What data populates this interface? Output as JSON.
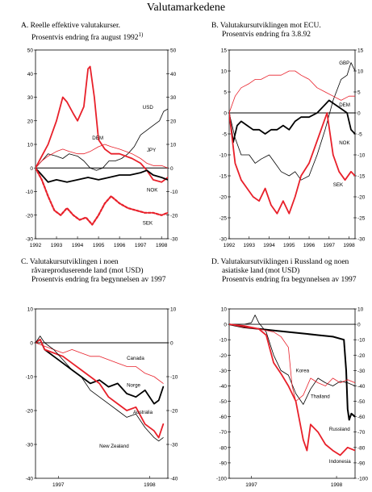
{
  "page_title": "Valutamarkedene",
  "colors": {
    "red": "#e8202a",
    "black": "#000000"
  },
  "chart_data": [
    {
      "id": "A",
      "type": "line",
      "title_lines": [
        "A.  Reelle effektive valutakurser.",
        "Prosentvis endring fra august 1992"
      ],
      "title_sup": "1)",
      "ylim": [
        -30,
        50
      ],
      "yticks": [
        -30,
        -20,
        -10,
        0,
        10,
        20,
        30,
        40,
        50
      ],
      "xlim": [
        1992.0,
        1998.3
      ],
      "xticks": [
        "1992",
        "1993",
        "1994",
        "1995",
        "1996",
        "1997",
        "1998"
      ],
      "xtick_pos": [
        1992.0,
        1993.0,
        1994.0,
        1995.0,
        1996.0,
        1997.0,
        1998.0
      ],
      "series": [
        {
          "name": "USD",
          "color": "#000000",
          "width": 0.8,
          "dash": "",
          "x": [
            1992.0,
            1992.3,
            1992.6,
            1993.0,
            1993.3,
            1993.6,
            1994.0,
            1994.3,
            1994.6,
            1994.9,
            1995.2,
            1995.5,
            1995.8,
            1996.1,
            1996.4,
            1996.7,
            1997.0,
            1997.3,
            1997.6,
            1997.9,
            1998.1,
            1998.3
          ],
          "y": [
            0,
            3,
            6,
            5,
            4,
            6,
            5,
            3,
            0,
            -1,
            0,
            3,
            3,
            4,
            6,
            9,
            14,
            16,
            18,
            20,
            24,
            25
          ]
        },
        {
          "name": "DEM",
          "color": "#e8202a",
          "width": 0.8,
          "dash": "",
          "x": [
            1992.0,
            1992.3,
            1992.6,
            1993.0,
            1993.3,
            1993.6,
            1994.0,
            1994.3,
            1994.6,
            1995.0,
            1995.3,
            1995.6,
            1996.0,
            1996.3,
            1996.6,
            1997.0,
            1997.3,
            1997.6,
            1998.0,
            1998.3
          ],
          "y": [
            0,
            3,
            5,
            7,
            8,
            7,
            6,
            6,
            7,
            9,
            10,
            9,
            8,
            7,
            6,
            4,
            2,
            1,
            1,
            0
          ]
        },
        {
          "name": "JPY",
          "color": "#e8202a",
          "width": 1.8,
          "dash": "",
          "x": [
            1992.0,
            1992.3,
            1992.6,
            1993.0,
            1993.3,
            1993.5,
            1993.8,
            1994.0,
            1994.3,
            1994.5,
            1994.6,
            1994.8,
            1995.0,
            1995.3,
            1995.6,
            1996.0,
            1996.3,
            1996.6,
            1997.0,
            1997.3,
            1997.6,
            1998.0,
            1998.3
          ],
          "y": [
            0,
            5,
            10,
            20,
            30,
            28,
            23,
            20,
            26,
            42,
            43,
            30,
            12,
            8,
            6,
            6,
            5,
            4,
            2,
            -1,
            -5,
            -6,
            -4
          ]
        },
        {
          "name": "NOK",
          "color": "#000000",
          "width": 1.8,
          "dash": "",
          "x": [
            1992.0,
            1992.3,
            1992.6,
            1993.0,
            1993.5,
            1994.0,
            1994.5,
            1995.0,
            1995.5,
            1996.0,
            1996.5,
            1997.0,
            1997.3,
            1997.6,
            1998.0,
            1998.3
          ],
          "y": [
            0,
            -3,
            -6,
            -5,
            -6,
            -5,
            -4,
            -5,
            -4,
            -3,
            -3,
            -2,
            -1,
            -3,
            -4,
            -5
          ]
        },
        {
          "name": "SEK",
          "color": "#e8202a",
          "width": 2.2,
          "dash": "3,2",
          "x": [
            1992.0,
            1992.3,
            1992.6,
            1992.9,
            1993.2,
            1993.5,
            1993.8,
            1994.1,
            1994.4,
            1994.7,
            1995.0,
            1995.3,
            1995.6,
            1996.0,
            1996.4,
            1996.8,
            1997.2,
            1997.6,
            1998.0,
            1998.3
          ],
          "y": [
            0,
            -5,
            -12,
            -18,
            -20,
            -17,
            -20,
            -22,
            -21,
            -24,
            -20,
            -15,
            -12,
            -15,
            -17,
            -18,
            -19,
            -19,
            -20,
            -19
          ]
        }
      ],
      "labels": [
        {
          "text": "USD",
          "x": 1997.1,
          "y": 25
        },
        {
          "text": "DEM",
          "x": 1994.7,
          "y": 12
        },
        {
          "text": "JPY",
          "x": 1997.3,
          "y": 7
        },
        {
          "text": "NOK",
          "x": 1997.3,
          "y": -10
        },
        {
          "text": "SEK",
          "x": 1997.1,
          "y": -24
        }
      ]
    },
    {
      "id": "B",
      "type": "line",
      "title_lines": [
        "B.  Valutakursutviklingen mot ECU.",
        "Prosentvis endring fra 3.8.92"
      ],
      "ylim": [
        -30,
        15
      ],
      "yticks": [
        -30,
        -25,
        -20,
        -15,
        -10,
        -5,
        0,
        5,
        10,
        15
      ],
      "xlim": [
        1992.0,
        1998.3
      ],
      "xticks": [
        "1992",
        "1993",
        "1994",
        "1995",
        "1996",
        "1997",
        "1998"
      ],
      "xtick_pos": [
        1992.0,
        1993.0,
        1994.0,
        1995.0,
        1996.0,
        1997.0,
        1998.0
      ],
      "series": [
        {
          "name": "GBP",
          "color": "#000000",
          "width": 0.8,
          "dash": "",
          "x": [
            1992.0,
            1992.3,
            1992.6,
            1993.0,
            1993.3,
            1993.6,
            1994.0,
            1994.3,
            1994.6,
            1995.0,
            1995.3,
            1995.6,
            1996.0,
            1996.4,
            1996.8,
            1997.2,
            1997.6,
            1997.9,
            1998.1,
            1998.3
          ],
          "y": [
            0,
            -6,
            -10,
            -10,
            -12,
            -11,
            -10,
            -12,
            -14,
            -15,
            -14,
            -16,
            -15,
            -10,
            -4,
            3,
            8,
            9,
            12,
            10
          ]
        },
        {
          "name": "DEM",
          "color": "#e8202a",
          "width": 0.8,
          "dash": "",
          "x": [
            1992.0,
            1992.3,
            1992.6,
            1993.0,
            1993.3,
            1993.6,
            1994.0,
            1994.3,
            1994.6,
            1995.0,
            1995.3,
            1995.6,
            1996.0,
            1996.4,
            1996.8,
            1997.2,
            1997.6,
            1998.0,
            1998.3
          ],
          "y": [
            0,
            4,
            6,
            7,
            8,
            8,
            9,
            9,
            9,
            10,
            10,
            9,
            8,
            6,
            5,
            4,
            3,
            4,
            4
          ]
        },
        {
          "name": "NOK",
          "color": "#000000",
          "width": 1.8,
          "dash": "",
          "x": [
            1992.0,
            1992.2,
            1992.4,
            1992.6,
            1992.9,
            1993.2,
            1993.5,
            1993.8,
            1994.1,
            1994.4,
            1994.7,
            1995.0,
            1995.3,
            1995.6,
            1996.0,
            1996.4,
            1996.8,
            1997.0,
            1997.3,
            1997.6,
            1997.9,
            1998.1,
            1998.3
          ],
          "y": [
            0,
            -7,
            -3,
            -2,
            -3,
            -4,
            -4,
            -5,
            -4,
            -4,
            -3,
            -4,
            -2,
            -1,
            -1,
            0,
            2,
            3,
            2,
            1,
            0,
            -4,
            -5
          ]
        },
        {
          "name": "SEK",
          "color": "#e8202a",
          "width": 1.8,
          "dash": "",
          "x": [
            1992.0,
            1992.3,
            1992.6,
            1992.9,
            1993.2,
            1993.5,
            1993.8,
            1994.1,
            1994.4,
            1994.7,
            1995.0,
            1995.3,
            1995.6,
            1996.0,
            1996.3,
            1996.6,
            1996.9,
            1997.2,
            1997.5,
            1997.8,
            1998.1,
            1998.3
          ],
          "y": [
            0,
            -12,
            -16,
            -18,
            -20,
            -21,
            -18,
            -22,
            -24,
            -21,
            -24,
            -20,
            -15,
            -12,
            -8,
            -4,
            0,
            -10,
            -14,
            -16,
            -14,
            -15
          ]
        }
      ],
      "labels": [
        {
          "text": "GBP",
          "x": 1997.5,
          "y": 11.5
        },
        {
          "text": "DEM",
          "x": 1997.5,
          "y": 1.5
        },
        {
          "text": "NOK",
          "x": 1997.5,
          "y": -7.5
        },
        {
          "text": "SEK",
          "x": 1997.2,
          "y": -17.5
        }
      ]
    },
    {
      "id": "C",
      "type": "line",
      "title_lines": [
        "C.  Valutakursutviklingen i noen",
        "råvareproduserende land (mot USD)",
        "Prosentvis endring fra begynnelsen av 1997"
      ],
      "ylim": [
        -40,
        10
      ],
      "yticks": [
        -40,
        -30,
        -20,
        -10,
        0,
        10
      ],
      "xlim": [
        1997.0,
        1998.45
      ],
      "xticks": [
        "1997",
        "1998"
      ],
      "xtick_pos": [
        1997.25,
        1998.25
      ],
      "series": [
        {
          "name": "Canada",
          "color": "#e8202a",
          "width": 0.8,
          "dash": "",
          "x": [
            1997.0,
            1997.1,
            1997.2,
            1997.3,
            1997.4,
            1997.5,
            1997.6,
            1997.7,
            1997.8,
            1997.9,
            1998.0,
            1998.1,
            1998.2,
            1998.3,
            1998.4
          ],
          "y": [
            0,
            -1,
            -2,
            -3,
            -2,
            -3,
            -4,
            -4,
            -5,
            -6,
            -7,
            -7,
            -9,
            -10,
            -12
          ]
        },
        {
          "name": "Norge",
          "color": "#000000",
          "width": 1.8,
          "dash": "",
          "x": [
            1997.0,
            1997.05,
            1997.1,
            1997.2,
            1997.3,
            1997.4,
            1997.5,
            1997.6,
            1997.7,
            1997.8,
            1997.9,
            1998.0,
            1998.1,
            1998.2,
            1998.3,
            1998.35,
            1998.4
          ],
          "y": [
            0,
            1,
            -2,
            -4,
            -6,
            -8,
            -10,
            -12,
            -11,
            -13,
            -12,
            -15,
            -16,
            -14,
            -18,
            -17,
            -13
          ]
        },
        {
          "name": "Australia",
          "color": "#e8202a",
          "width": 1.8,
          "dash": "",
          "x": [
            1997.0,
            1997.05,
            1997.1,
            1997.2,
            1997.3,
            1997.4,
            1997.5,
            1997.6,
            1997.7,
            1997.8,
            1997.9,
            1998.0,
            1998.1,
            1998.2,
            1998.3,
            1998.35,
            1998.4
          ],
          "y": [
            0,
            1,
            -2,
            -3,
            -4,
            -6,
            -8,
            -10,
            -12,
            -16,
            -18,
            -20,
            -19,
            -24,
            -26,
            -28,
            -24
          ]
        },
        {
          "name": "New Zealand",
          "color": "#000000",
          "width": 0.8,
          "dash": "",
          "x": [
            1997.0,
            1997.05,
            1997.1,
            1997.2,
            1997.3,
            1997.4,
            1997.5,
            1997.6,
            1997.7,
            1997.8,
            1997.9,
            1998.0,
            1998.1,
            1998.2,
            1998.3,
            1998.35,
            1998.4
          ],
          "y": [
            0,
            2,
            0,
            -2,
            -5,
            -8,
            -10,
            -14,
            -16,
            -18,
            -20,
            -22,
            -21,
            -25,
            -28,
            -29,
            -28
          ]
        }
      ],
      "labels": [
        {
          "text": "Canada",
          "x": 1998.0,
          "y": -5
        },
        {
          "text": "Norge",
          "x": 1998.0,
          "y": -13
        },
        {
          "text": "Australia",
          "x": 1998.07,
          "y": -21
        },
        {
          "text": "New Zealand",
          "x": 1997.7,
          "y": -31
        }
      ]
    },
    {
      "id": "D",
      "type": "line",
      "title_lines": [
        "D.  Valutakursutviklingen i Russland og noen",
        "asiatiske land (mot USD)",
        "Prosentvis endring fra begynnelsen av 1997"
      ],
      "ylim": [
        -100,
        10
      ],
      "yticks": [
        -100,
        -90,
        -80,
        -70,
        -60,
        -50,
        -40,
        -30,
        -20,
        -10,
        0,
        10
      ],
      "xlim": [
        1997.0,
        1998.7
      ],
      "xticks": [
        "1997",
        "1998"
      ],
      "xtick_pos": [
        1997.3,
        1998.45
      ],
      "series": [
        {
          "name": "Russland",
          "color": "#000000",
          "width": 2.0,
          "dash": "",
          "x": [
            1997.0,
            1997.2,
            1997.4,
            1997.6,
            1997.8,
            1998.0,
            1998.2,
            1998.4,
            1998.55,
            1998.58,
            1998.6,
            1998.62,
            1998.65,
            1998.7
          ],
          "y": [
            0,
            -2,
            -3,
            -4,
            -5,
            -6,
            -7,
            -8,
            -10,
            -30,
            -55,
            -62,
            -58,
            -60
          ]
        },
        {
          "name": "Thailand",
          "color": "#000000",
          "width": 0.8,
          "dash": "",
          "x": [
            1997.0,
            1997.2,
            1997.3,
            1997.35,
            1997.4,
            1997.5,
            1997.6,
            1997.7,
            1997.8,
            1997.9,
            1998.0,
            1998.1,
            1998.2,
            1998.3,
            1998.4,
            1998.5,
            1998.6,
            1998.7
          ],
          "y": [
            0,
            0,
            1,
            6,
            1,
            -5,
            -20,
            -30,
            -33,
            -45,
            -52,
            -42,
            -35,
            -38,
            -40,
            -37,
            -38,
            -40
          ]
        },
        {
          "name": "Korea",
          "color": "#e8202a",
          "width": 0.8,
          "dash": "",
          "x": [
            1997.0,
            1997.2,
            1997.4,
            1997.6,
            1997.7,
            1997.8,
            1997.85,
            1997.9,
            1998.0,
            1998.1,
            1998.2,
            1998.3,
            1998.4,
            1998.5,
            1998.6,
            1998.7
          ],
          "y": [
            0,
            -2,
            -3,
            -5,
            -8,
            -15,
            -40,
            -50,
            -46,
            -35,
            -38,
            -40,
            -35,
            -38,
            -36,
            -38
          ]
        },
        {
          "name": "Indonesia",
          "color": "#e8202a",
          "width": 1.8,
          "dash": "",
          "x": [
            1997.0,
            1997.2,
            1997.4,
            1997.5,
            1997.6,
            1997.7,
            1997.8,
            1997.9,
            1998.0,
            1998.05,
            1998.1,
            1998.2,
            1998.3,
            1998.4,
            1998.5,
            1998.6,
            1998.7
          ],
          "y": [
            0,
            -1,
            -3,
            -7,
            -25,
            -32,
            -40,
            -50,
            -75,
            -82,
            -65,
            -70,
            -78,
            -82,
            -85,
            -80,
            -82
          ]
        }
      ],
      "labels": [
        {
          "text": "Korea",
          "x": 1997.9,
          "y": -31
        },
        {
          "text": "Thailand",
          "x": 1998.1,
          "y": -48
        },
        {
          "text": "Russland",
          "x": 1998.35,
          "y": -69
        },
        {
          "text": "Indonesia",
          "x": 1998.35,
          "y": -90
        }
      ]
    }
  ]
}
